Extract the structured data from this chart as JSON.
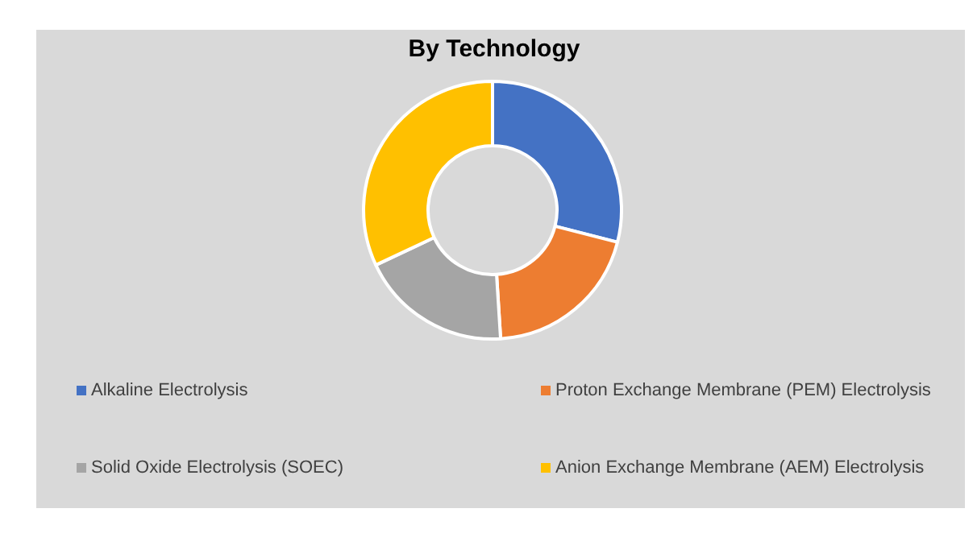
{
  "chart_data": {
    "type": "donut",
    "title": "By Technology",
    "categories": [
      "Alkaline Electrolysis",
      "Proton Exchange Membrane (PEM) Electrolysis",
      "Solid Oxide Electrolysis (SOEC)",
      "Anion Exchange Membrane (AEM) Electrolysis"
    ],
    "values": [
      29,
      20,
      19,
      32
    ],
    "colors": [
      "#4472c4",
      "#ed7d31",
      "#a5a5a5",
      "#ffc000"
    ],
    "legend": "bottom"
  }
}
